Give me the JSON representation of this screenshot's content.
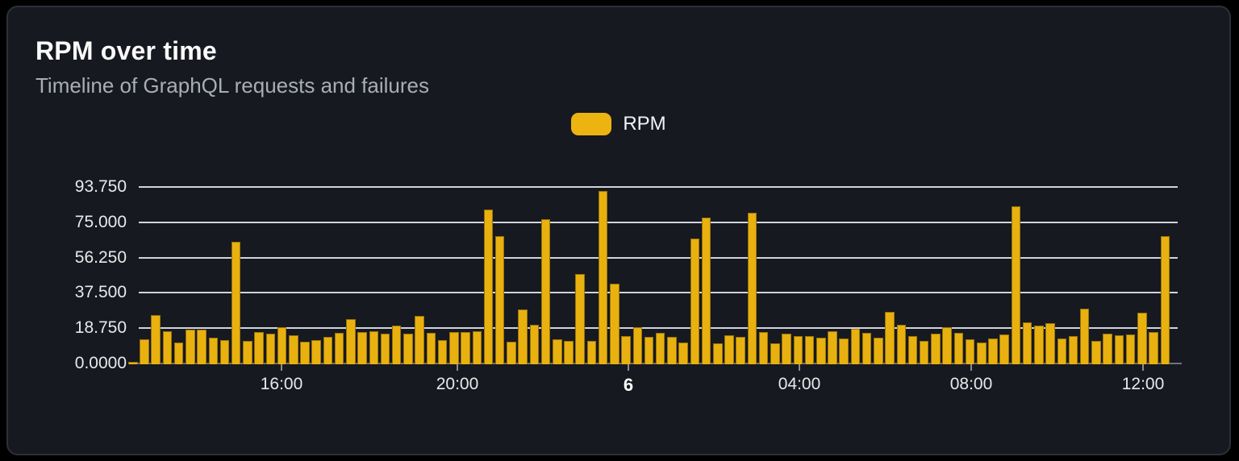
{
  "header": {
    "title": "RPM over time",
    "subtitle": "Timeline of GraphQL requests and failures"
  },
  "legend": {
    "position": "top-center",
    "items": [
      {
        "label": "RPM",
        "color": "#edb311"
      }
    ]
  },
  "colors": {
    "page_background": "#000000",
    "card_background": "#171920",
    "card_border": "#2e3037",
    "bar": "#e8b110",
    "gridline": "#e2e4ee",
    "axis_line": "#71727a",
    "text_primary": "#fafafa",
    "text_secondary": "#a9adb5",
    "axis_text": "#e8e9eb"
  },
  "chart_data": {
    "type": "bar",
    "title": "RPM over time",
    "xlabel": "",
    "ylabel": "",
    "grid": true,
    "legend_position": "top-center",
    "ylim": [
      0,
      93.75
    ],
    "y_ticks": [
      {
        "label": "0.0000",
        "value": 0
      },
      {
        "label": "18.750",
        "value": 18.75
      },
      {
        "label": "37.500",
        "value": 37.5
      },
      {
        "label": "56.250",
        "value": 56.25
      },
      {
        "label": "75.000",
        "value": 75
      },
      {
        "label": "93.750",
        "value": 93.75
      }
    ],
    "x_ticks": [
      {
        "label": "16:00",
        "px": 190,
        "bold": false
      },
      {
        "label": "20:00",
        "px": 408,
        "bold": false
      },
      {
        "label": "6",
        "px": 620,
        "bold": true
      },
      {
        "label": "04:00",
        "px": 832,
        "bold": false
      },
      {
        "label": "08:00",
        "px": 1045,
        "bold": false
      },
      {
        "label": "12:00",
        "px": 1258,
        "bold": false
      }
    ],
    "series": [
      {
        "name": "RPM",
        "color": "#e8b110",
        "values": [
          1.5,
          13.3,
          26.3,
          17.6,
          11.5,
          18.5,
          18.5,
          14.0,
          13.0,
          65.0,
          12.6,
          17.3,
          16.4,
          19.5,
          15.4,
          12.2,
          12.7,
          14.7,
          16.9,
          23.8,
          17.2,
          17.6,
          16.1,
          20.7,
          16.4,
          25.9,
          16.5,
          12.9,
          17.3,
          17.3,
          17.6,
          82.0,
          68.0,
          12.1,
          29.0,
          21.0,
          77.0,
          13.4,
          12.5,
          48.0,
          12.6,
          92.0,
          43.0,
          14.8,
          19.7,
          14.5,
          16.8,
          14.4,
          11.5,
          67.0,
          78.0,
          11.2,
          15.4,
          14.4,
          80.5,
          17.2,
          11.0,
          16.2,
          14.8,
          15.1,
          14.1,
          17.7,
          13.6,
          18.7,
          16.8,
          14.1,
          28.0,
          20.8,
          15.1,
          12.6,
          16.2,
          19.7,
          16.5,
          13.4,
          11.5,
          13.6,
          15.8,
          84.0,
          22.2,
          20.4,
          22.0,
          13.9,
          15.1,
          29.4,
          12.5,
          16.2,
          15.4,
          15.8,
          27.3,
          17.2,
          68.0
        ]
      }
    ]
  }
}
